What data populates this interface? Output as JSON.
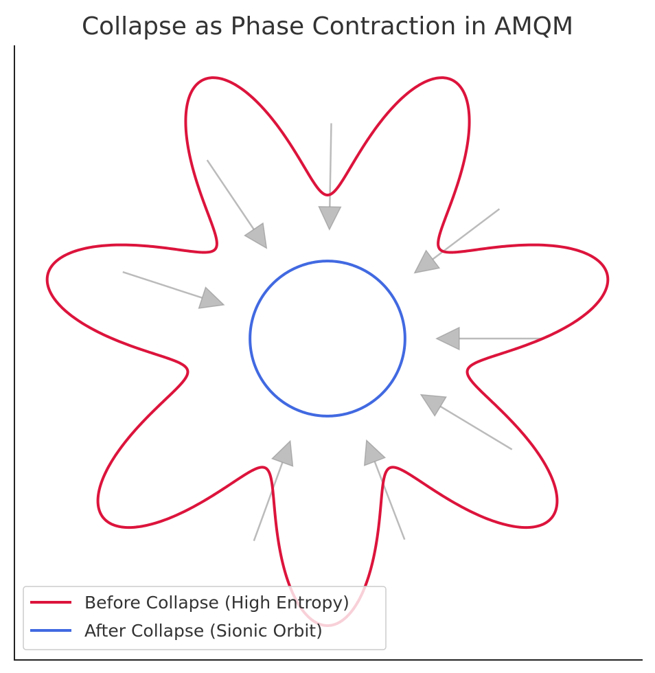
{
  "chart_data": {
    "type": "line",
    "title": "Collapse as Phase Contraction in AMQM",
    "xlabel": "",
    "ylabel": "",
    "xlim": [
      -1.05,
      1.05
    ],
    "ylim": [
      -1.05,
      1.05
    ],
    "grid": false,
    "axes_visible": [
      "left",
      "bottom"
    ],
    "legend_placement": "lower-left",
    "series": [
      {
        "name": "Before Collapse (High Entropy)",
        "color": "#dc143c",
        "curve": "r = 0.75 + 0.25*sin(7*theta)"
      },
      {
        "name": "After Collapse (Sionic Orbit)",
        "color": "#4169e1",
        "curve": "r = 0.27"
      }
    ],
    "arrows": {
      "color": "#aaaaaa",
      "start_radius": 0.75,
      "end_radius": 0.38,
      "angles_deg": [
        0,
        37,
        89,
        124,
        162,
        250,
        291,
        329
      ]
    }
  }
}
